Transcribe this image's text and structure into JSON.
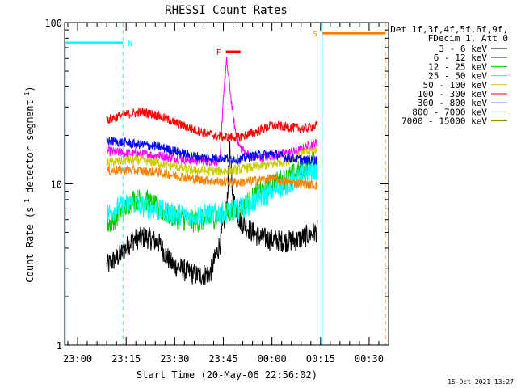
{
  "chart_data": {
    "type": "line",
    "title": "RHESSI Count Rates",
    "xlabel": "Start Time (20-May-06 22:56:02)",
    "ylabel_main": "Count Rate (s",
    "ylabel_sup1": "-1",
    "ylabel_mid": " detector segment",
    "ylabel_sup2": "-1",
    "ylabel_end": ")",
    "y_scale": "log",
    "ylim": [
      1,
      100
    ],
    "y_ticks": [
      1,
      10,
      100
    ],
    "y_tick_labels": [
      "1",
      "10",
      "100"
    ],
    "xlim_minutes": [
      -4.0,
      96.0
    ],
    "x_ticks_minutes": [
      0,
      15,
      30,
      45,
      60,
      75,
      90
    ],
    "x_tick_labels": [
      "23:00",
      "23:15",
      "23:30",
      "23:45",
      "00:00",
      "00:15",
      "00:30"
    ],
    "legend_title": [
      "Det 1f,3f,4f,5f,6f,9f,",
      "FDecim 1, Att 0"
    ],
    "legend_position": "right",
    "series": [
      {
        "name": "3 - 6 keV",
        "color": "#000000",
        "x": [
          9,
          13,
          17,
          21,
          25,
          29,
          33,
          37,
          41,
          44,
          46,
          47,
          48,
          50,
          52,
          54,
          57,
          60,
          64,
          68,
          71,
          73,
          74
        ],
        "values": [
          3.1,
          3.6,
          4.5,
          4.7,
          4.3,
          3.2,
          2.9,
          2.7,
          2.8,
          4.3,
          7.0,
          16,
          8.0,
          6.0,
          5.5,
          5.0,
          4.6,
          4.5,
          4.4,
          4.5,
          4.8,
          5.0,
          5.1
        ]
      },
      {
        "name": "6 - 12 keV",
        "color": "#ff00ff",
        "x": [
          9,
          15,
          20,
          25,
          30,
          35,
          40,
          44,
          45,
          46,
          47,
          48,
          49,
          50,
          53,
          56,
          60,
          64,
          68,
          72,
          74
        ],
        "values": [
          16,
          15.5,
          15.3,
          15,
          14.5,
          14,
          13.8,
          14,
          35,
          58,
          40,
          26,
          20,
          17,
          15,
          14.5,
          15,
          15.5,
          16,
          17.5,
          18
        ]
      },
      {
        "name": "12 - 25 keV",
        "color": "#00cc00",
        "x": [
          9,
          13,
          17,
          21,
          25,
          30,
          35,
          40,
          45,
          50,
          55,
          60,
          65,
          70,
          74
        ],
        "values": [
          5.5,
          6.5,
          8.0,
          8.0,
          7.0,
          6.2,
          5.8,
          6.0,
          6.5,
          7.0,
          8.5,
          10,
          11,
          12.5,
          14
        ]
      },
      {
        "name": "25 - 50 keV",
        "color": "#00ffff",
        "x": [
          9,
          13,
          17,
          21,
          25,
          30,
          35,
          40,
          45,
          50,
          55,
          60,
          65,
          70,
          74
        ],
        "values": [
          6.5,
          7.2,
          7.5,
          7.2,
          6.8,
          6.5,
          6.4,
          6.5,
          6.6,
          7.0,
          7.8,
          9.0,
          10,
          11.5,
          12.5
        ]
      },
      {
        "name": "50 - 100 keV",
        "color": "#cccc00",
        "x": [
          9,
          15,
          20,
          25,
          30,
          35,
          40,
          45,
          50,
          55,
          60,
          65,
          70,
          74
        ],
        "values": [
          13.5,
          14,
          14,
          13.5,
          12.8,
          12.2,
          12,
          12,
          12.3,
          12.8,
          13.2,
          14,
          15.5,
          16.5
        ]
      },
      {
        "name": "100 - 300 keV",
        "color": "#ff0000",
        "x": [
          9,
          15,
          20,
          25,
          30,
          35,
          40,
          45,
          50,
          55,
          60,
          65,
          70,
          74
        ],
        "values": [
          25,
          27,
          28,
          26.5,
          24,
          22,
          20.5,
          19.5,
          19.5,
          21,
          23,
          22.5,
          22,
          23
        ]
      },
      {
        "name": "300 - 800 keV",
        "color": "#0000ff",
        "x": [
          9,
          15,
          20,
          25,
          30,
          35,
          40,
          45,
          50,
          55,
          60,
          65,
          70,
          74
        ],
        "values": [
          18.5,
          18,
          17.5,
          17,
          16,
          15,
          14.5,
          14.5,
          14.2,
          15,
          15.5,
          14.5,
          14,
          14
        ]
      },
      {
        "name": "800 - 7000 keV",
        "color": "#ff8000",
        "x": [
          9,
          15,
          20,
          25,
          30,
          35,
          40,
          45,
          50,
          55,
          60,
          65,
          70,
          74
        ],
        "values": [
          12,
          12.3,
          12,
          11.8,
          11.3,
          10.8,
          10.5,
          10.3,
          10.2,
          10.5,
          10.8,
          10.3,
          10,
          9.8
        ]
      },
      {
        "name": "7000 - 15000 keV",
        "color": "#808000",
        "x": [],
        "values": []
      }
    ],
    "annotations": [
      {
        "label": "N",
        "color": "#00ffff",
        "bar_x_minutes": [
          -4.0,
          14.0
        ],
        "bar_y": 75,
        "dashed_line_x_minutes": 14.0
      },
      {
        "label": "F",
        "color": "#ff0000",
        "bar_x_minutes": [
          45.8,
          50.3
        ],
        "bar_y": 66
      },
      {
        "label": "S",
        "color": "#ff8000",
        "bar_x_minutes": [
          75.5,
          95.0
        ],
        "bar_y": 86,
        "dashed_line_x_minutes": 95.0
      }
    ],
    "timestamp": "15-Oct-2021 13:27"
  }
}
